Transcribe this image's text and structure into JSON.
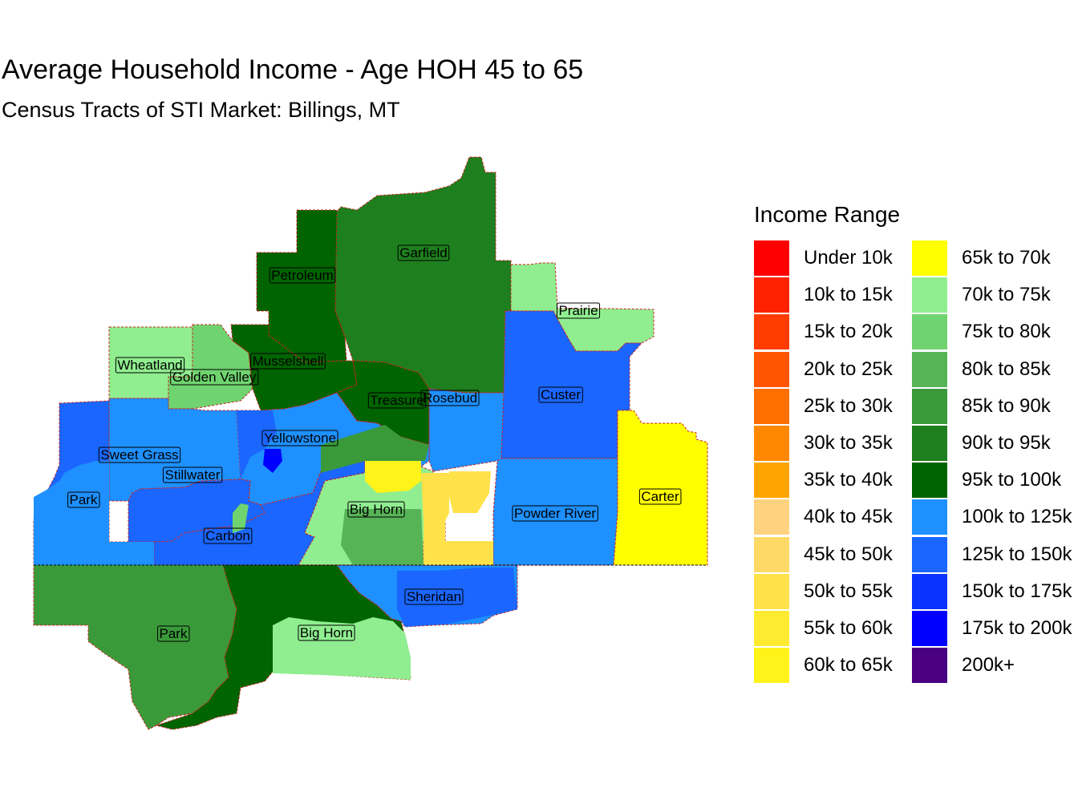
{
  "title": "Average Household Income - Age HOH 45 to 65",
  "subtitle": "Census Tracts of STI Market: Billings, MT",
  "legend": {
    "title": "Income Range",
    "items": [
      {
        "label": "Under 10k",
        "color": "#ff0000"
      },
      {
        "label": "10k to 15k",
        "color": "#ff2200"
      },
      {
        "label": "15k to 20k",
        "color": "#ff3c00"
      },
      {
        "label": "20k to 25k",
        "color": "#ff5500"
      },
      {
        "label": "25k to 30k",
        "color": "#ff6e00"
      },
      {
        "label": "30k to 35k",
        "color": "#ff8800"
      },
      {
        "label": "35k to 40k",
        "color": "#ffa500"
      },
      {
        "label": "40k to 45k",
        "color": "#ffd27f"
      },
      {
        "label": "45k to 50k",
        "color": "#ffd966"
      },
      {
        "label": "50k to 55k",
        "color": "#ffe24a"
      },
      {
        "label": "55k to 60k",
        "color": "#ffea32"
      },
      {
        "label": "60k to 65k",
        "color": "#fff31a"
      },
      {
        "label": "65k to 70k",
        "color": "#ffff00"
      },
      {
        "label": "70k to 75k",
        "color": "#90ee90"
      },
      {
        "label": "75k to 80k",
        "color": "#6fd46f"
      },
      {
        "label": "80k to 85k",
        "color": "#56b356"
      },
      {
        "label": "85k to 90k",
        "color": "#3a9a3a"
      },
      {
        "label": "90k to 95k",
        "color": "#1e7f1e"
      },
      {
        "label": "95k to 100k",
        "color": "#006400"
      },
      {
        "label": "100k to 125k",
        "color": "#1e90ff"
      },
      {
        "label": "125k to 150k",
        "color": "#1a66ff"
      },
      {
        "label": "150k to 175k",
        "color": "#0a33ff"
      },
      {
        "label": "175k to 200k",
        "color": "#0000ff"
      },
      {
        "label": "200k+",
        "color": "#4b0082"
      }
    ]
  },
  "counties": [
    {
      "name": "Garfield",
      "color": "#1e7f1e"
    },
    {
      "name": "Petroleum",
      "color": "#006400"
    },
    {
      "name": "Prairie",
      "color": "#90ee90"
    },
    {
      "name": "Wheatland",
      "color": "#90ee90"
    },
    {
      "name": "Golden Valley",
      "color": "#6fd46f"
    },
    {
      "name": "Musselshell",
      "color": "#006400"
    },
    {
      "name": "Treasure",
      "color": "#006400"
    },
    {
      "name": "Rosebud",
      "color": "#1e90ff"
    },
    {
      "name": "Custer",
      "color": "#1a66ff"
    },
    {
      "name": "Yellowstone",
      "color": "#1e90ff"
    },
    {
      "name": "Sweet Grass",
      "color": "#1e90ff"
    },
    {
      "name": "Stillwater",
      "color": "#1a66ff"
    },
    {
      "name": "Park",
      "color": "#1a66ff"
    },
    {
      "name": "Carbon",
      "color": "#1a66ff"
    },
    {
      "name": "Big Horn",
      "color": "#90ee90"
    },
    {
      "name": "Powder River",
      "color": "#1e90ff"
    },
    {
      "name": "Carter",
      "color": "#ffff00"
    },
    {
      "name": "Sheridan",
      "color": "#1e90ff"
    },
    {
      "name": "Park",
      "color": "#3a9a3a"
    },
    {
      "name": "Big Horn",
      "color": "#006400"
    }
  ]
}
